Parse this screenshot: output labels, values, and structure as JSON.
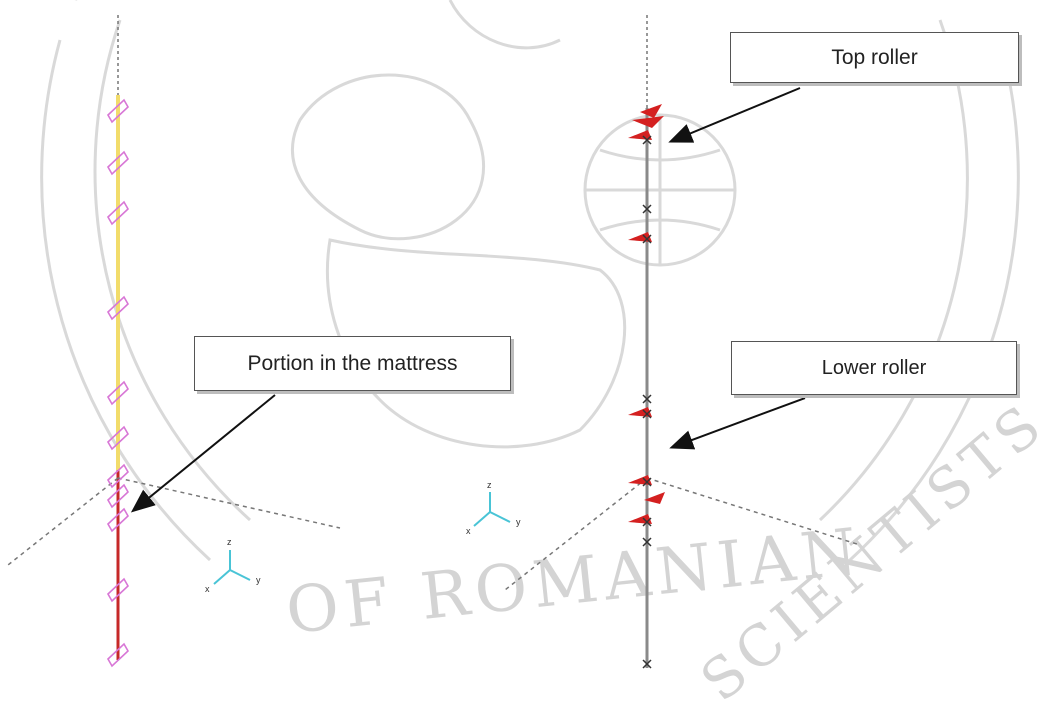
{
  "callouts": {
    "top_roller": "Top roller",
    "lower_roller": "Lower roller",
    "mattress_portion": "Portion in the mattress"
  },
  "axis_triads": [
    {
      "z": "z",
      "y": "y",
      "x": "x"
    },
    {
      "z": "z",
      "y": "y",
      "x": "x"
    }
  ],
  "watermark": {
    "text": "ACADEMY OF ROMANIAN SCIENTISTS"
  },
  "colors": {
    "mattress_segment": "#c62828",
    "upper_segment": "#f2dc6b",
    "right_beam": "#8a8a8a",
    "support_marker": "#d42020",
    "plane_marker": "#d877d6",
    "triad": "#49c4d6",
    "watermark": "#cfcfcf"
  }
}
